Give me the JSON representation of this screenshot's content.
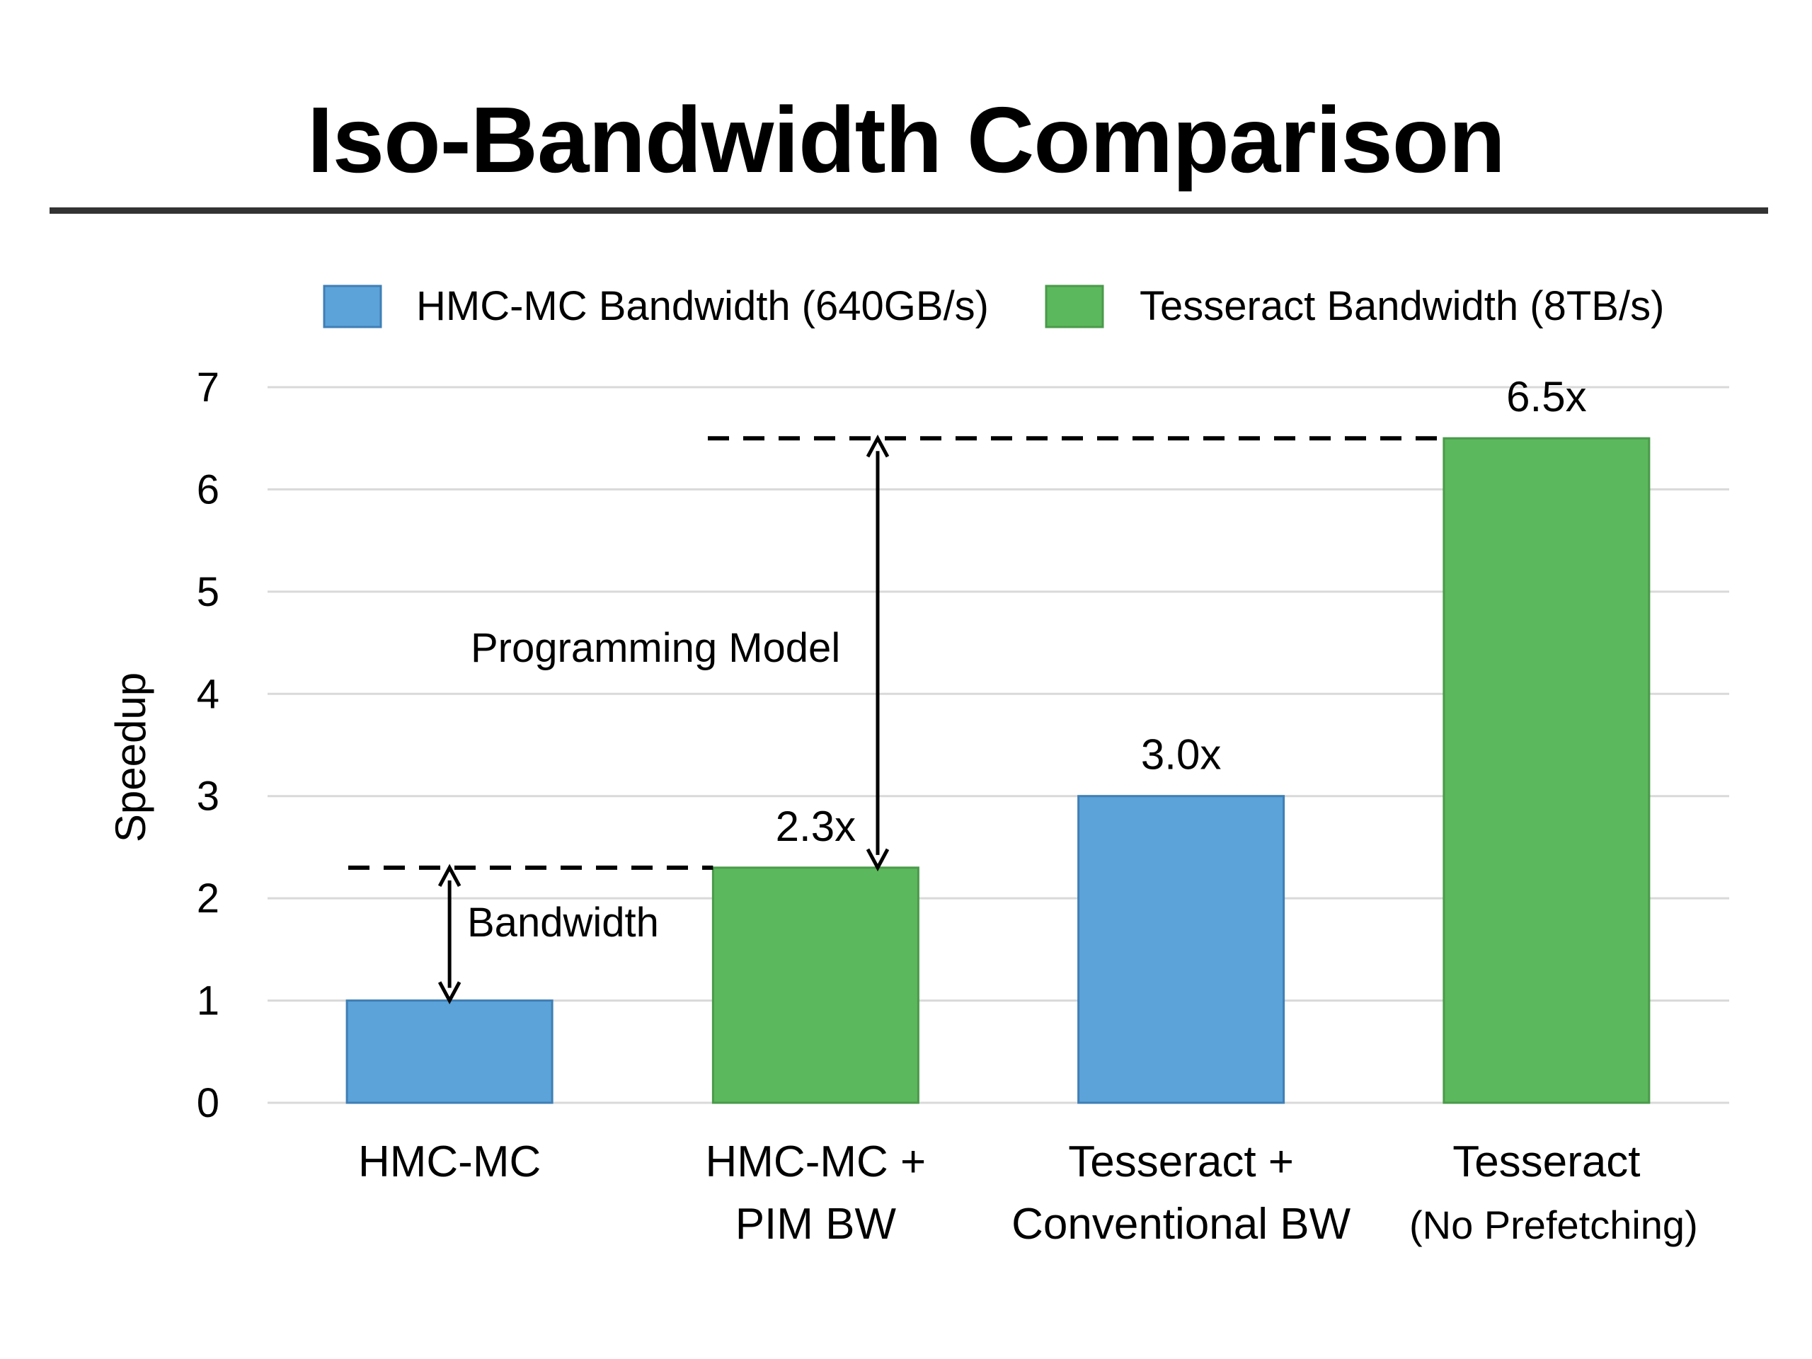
{
  "title": "Iso-Bandwidth Comparison",
  "chart_data": {
    "type": "bar",
    "categories": [
      [
        "HMC-MC"
      ],
      [
        "HMC-MC +",
        "PIM BW"
      ],
      [
        "Tesseract +",
        "Conventional BW"
      ],
      [
        "Tesseract",
        "(No Prefetching)"
      ]
    ],
    "values": [
      1.0,
      2.3,
      3.0,
      6.5
    ],
    "bar_series": [
      0,
      1,
      0,
      1
    ],
    "data_labels": [
      "",
      "2.3x",
      "3.0x",
      "6.5x"
    ],
    "series": [
      {
        "name": "HMC-MC Bandwidth (640GB/s)",
        "color": "#5ba3d9"
      },
      {
        "name": "Tesseract Bandwidth (8TB/s)",
        "color": "#5cb85c"
      }
    ],
    "ylabel": "Speedup",
    "xlabel": "",
    "ylim": [
      0,
      7
    ],
    "yticks": [
      "0",
      "1",
      "2",
      "3",
      "4",
      "5",
      "6",
      "7"
    ],
    "grid": true,
    "legend_position": "top",
    "annotations": [
      {
        "label": "Bandwidth",
        "from_value": 1.0,
        "to_value": 2.3
      },
      {
        "label": "Programming Model",
        "from_value": 2.3,
        "to_value": 6.5
      }
    ]
  }
}
